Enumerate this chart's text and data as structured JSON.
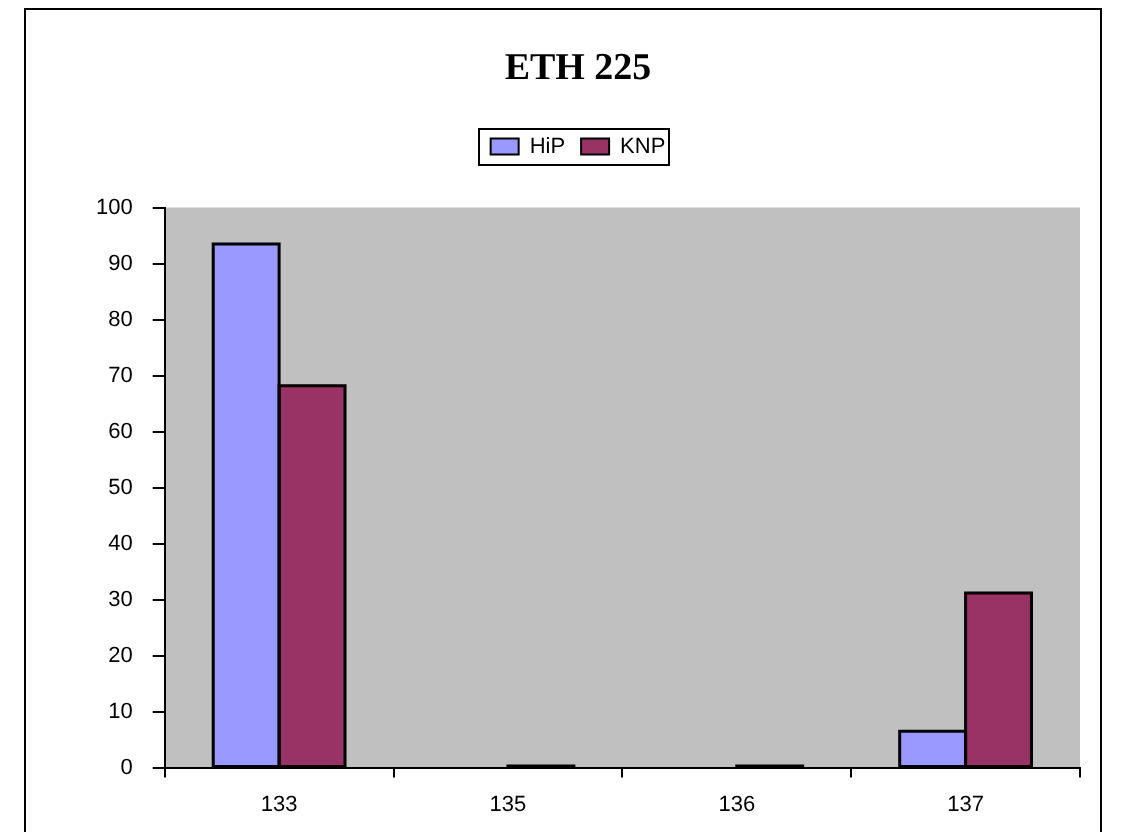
{
  "chart_data": {
    "type": "bar",
    "title": "ETH 225",
    "categories": [
      "133",
      "135",
      "136",
      "137"
    ],
    "series": [
      {
        "name": "HiP",
        "color": "#9999ff",
        "values": [
          93.5,
          0,
          0,
          6.5
        ]
      },
      {
        "name": "KNP",
        "color": "#993366",
        "values": [
          68.2,
          0.3,
          0.3,
          31.2
        ]
      }
    ],
    "ylim": [
      0,
      100
    ],
    "yticks": [
      0,
      10,
      20,
      30,
      40,
      50,
      60,
      70,
      80,
      90,
      100
    ],
    "grid": false,
    "legend": "top"
  }
}
